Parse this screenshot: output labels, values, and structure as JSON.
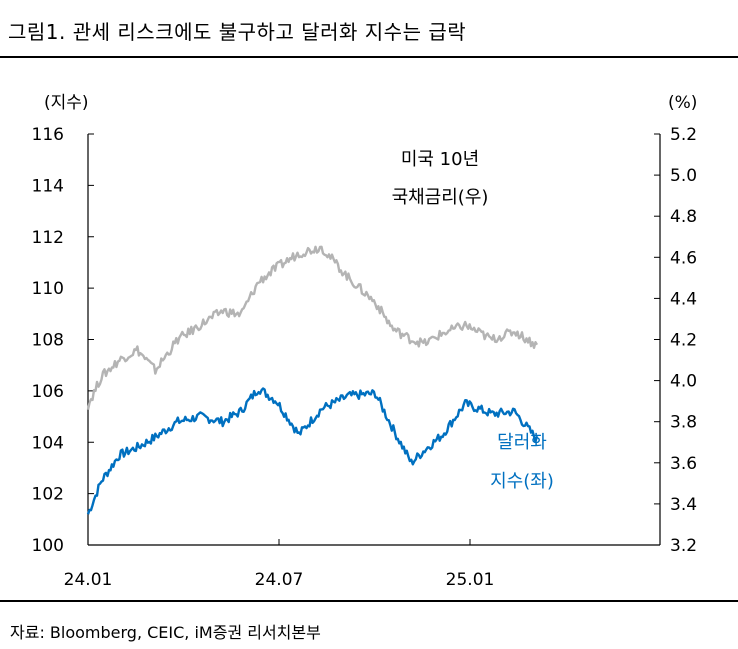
{
  "title": "그림1.   관세 리스크에도 불구하고 달러화 지수는 급락",
  "source": "자료: Bloomberg, CEIC, iM증권 리서치본부",
  "colors": {
    "dxy": "#0070c0",
    "yield": "#b4b4b4",
    "axis": "#000000"
  },
  "chart_data": {
    "type": "line",
    "x_tick_labels": [
      "24.01",
      "24.07",
      "25.01"
    ],
    "y_left": {
      "label": "(지수)",
      "range": [
        100,
        116
      ],
      "ticks": [
        "100",
        "102",
        "104",
        "106",
        "108",
        "110",
        "112",
        "114",
        "116"
      ]
    },
    "y_right": {
      "label": "(%)",
      "range": [
        3.2,
        5.2
      ],
      "ticks": [
        "3.2",
        "3.4",
        "3.6",
        "3.8",
        "4.0",
        "4.2",
        "4.4",
        "4.6",
        "4.8",
        "5.0",
        "5.2"
      ]
    },
    "series": [
      {
        "name": "달러화 지수(좌)",
        "label_line1": "달러화",
        "label_line2": "지수(좌)",
        "axis": "left",
        "t": [
          0,
          0.03,
          0.07,
          0.11,
          0.15,
          0.2,
          0.25,
          0.3,
          0.34,
          0.38,
          0.42,
          0.47,
          0.52,
          0.58,
          0.64,
          0.68,
          0.72,
          0.75,
          0.79,
          0.84,
          0.9,
          0.95,
          1.0
        ],
        "values": [
          101.2,
          102.5,
          103.5,
          103.8,
          104.2,
          104.8,
          105.0,
          104.8,
          105.2,
          106.1,
          105.6,
          104.3,
          105.3,
          105.8,
          105.9,
          104.5,
          103.2,
          103.7,
          104.3,
          105.5,
          105.1,
          105.2,
          104.1
        ]
      },
      {
        "name": "미국 10년 국채금리(우)",
        "label_line1": "미국 10년",
        "label_line2": "국채금리(우)",
        "axis": "right",
        "t": [
          0,
          0.03,
          0.07,
          0.11,
          0.15,
          0.2,
          0.25,
          0.3,
          0.34,
          0.38,
          0.42,
          0.47,
          0.52,
          0.58,
          0.64,
          0.68,
          0.72,
          0.75,
          0.79,
          0.84,
          0.9,
          0.95,
          1.0
        ],
        "values": [
          3.88,
          4.02,
          4.1,
          4.15,
          4.05,
          4.2,
          4.27,
          4.34,
          4.32,
          4.48,
          4.55,
          4.62,
          4.65,
          4.5,
          4.38,
          4.25,
          4.2,
          4.18,
          4.23,
          4.27,
          4.2,
          4.24,
          4.17
        ]
      }
    ],
    "date_ticks_t": [
      0,
      0.5,
      1
    ]
  }
}
